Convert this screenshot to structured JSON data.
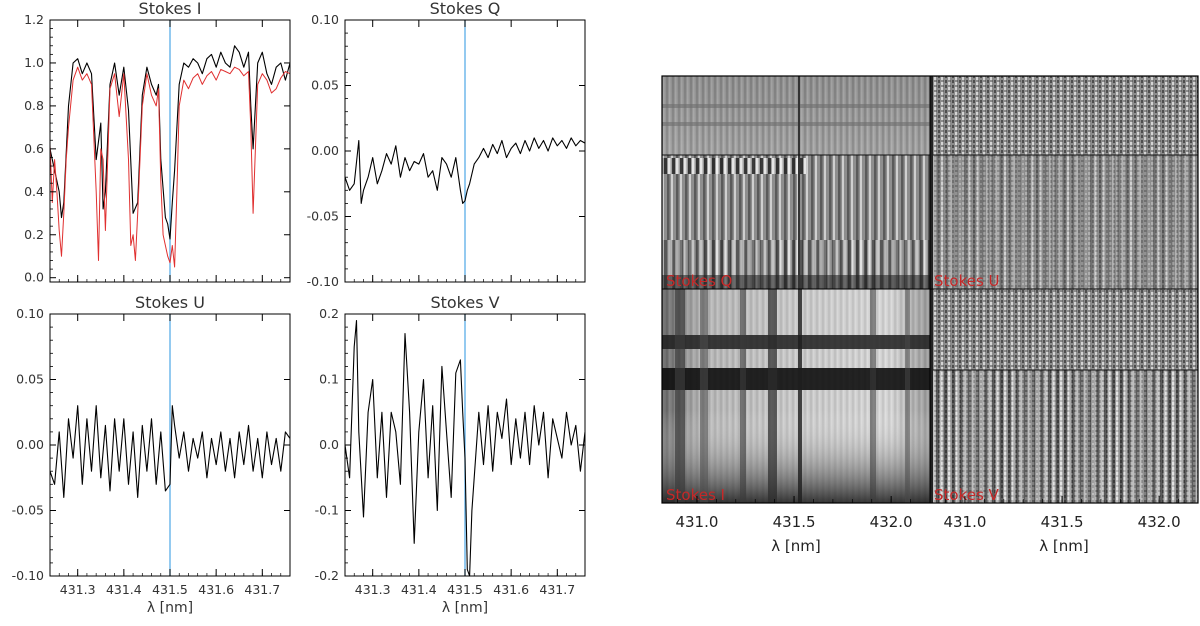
{
  "colors": {
    "observed": "#000000",
    "synthetic": "#e03030",
    "marker": "#5aaee8",
    "panel_label": "#c62828"
  },
  "chart_data": [
    {
      "type": "line",
      "title": "Stokes I",
      "xlim": [
        431.24,
        431.76
      ],
      "ylim": [
        -0.02,
        1.2
      ],
      "xticks": [
        431.3,
        431.4,
        431.5,
        431.6,
        431.7
      ],
      "xtick_labels": [],
      "yticks": [
        0.0,
        0.2,
        0.4,
        0.6,
        0.8,
        1.0,
        1.2
      ],
      "ytick_labels": [
        "0.0",
        "0.2",
        "0.4",
        "0.6",
        "0.8",
        "1.0",
        "1.2"
      ],
      "xlabel": "",
      "marker_x": 431.5,
      "series": [
        {
          "role": "observed",
          "x": [
            431.24,
            431.25,
            431.26,
            431.265,
            431.27,
            431.28,
            431.29,
            431.3,
            431.31,
            431.32,
            431.33,
            431.34,
            431.35,
            431.355,
            431.36,
            431.37,
            431.38,
            431.39,
            431.4,
            431.41,
            431.42,
            431.43,
            431.44,
            431.45,
            431.46,
            431.47,
            431.475,
            431.48,
            431.49,
            431.495,
            431.5,
            431.505,
            431.51,
            431.52,
            431.53,
            431.54,
            431.55,
            431.56,
            431.57,
            431.58,
            431.59,
            431.6,
            431.61,
            431.62,
            431.63,
            431.64,
            431.65,
            431.66,
            431.67,
            431.675,
            431.68,
            431.69,
            431.7,
            431.71,
            431.72,
            431.73,
            431.74,
            431.75,
            431.76
          ],
          "y": [
            0.6,
            0.5,
            0.4,
            0.28,
            0.35,
            0.8,
            1.0,
            1.02,
            0.95,
            1.0,
            0.95,
            0.55,
            0.72,
            0.32,
            0.4,
            0.9,
            1.0,
            0.85,
            0.98,
            0.78,
            0.3,
            0.35,
            0.85,
            0.98,
            0.9,
            0.85,
            0.9,
            0.55,
            0.28,
            0.25,
            0.18,
            0.35,
            0.5,
            0.9,
            1.0,
            0.98,
            1.02,
            1.0,
            0.95,
            1.02,
            1.04,
            0.98,
            1.05,
            1.0,
            0.98,
            1.08,
            1.05,
            0.98,
            1.05,
            0.8,
            0.6,
            1.0,
            1.05,
            0.95,
            0.9,
            0.98,
            1.0,
            0.92,
            1.0
          ]
        },
        {
          "role": "synthetic",
          "x": [
            431.24,
            431.245,
            431.25,
            431.255,
            431.26,
            431.265,
            431.27,
            431.275,
            431.28,
            431.29,
            431.3,
            431.31,
            431.32,
            431.33,
            431.34,
            431.345,
            431.35,
            431.355,
            431.36,
            431.37,
            431.38,
            431.39,
            431.4,
            431.41,
            431.415,
            431.42,
            431.425,
            431.43,
            431.44,
            431.45,
            431.46,
            431.47,
            431.475,
            431.48,
            431.485,
            431.49,
            431.495,
            431.5,
            431.505,
            431.51,
            431.515,
            431.52,
            431.53,
            431.54,
            431.55,
            431.56,
            431.57,
            431.58,
            431.59,
            431.6,
            431.61,
            431.62,
            431.63,
            431.64,
            431.65,
            431.66,
            431.67,
            431.675,
            431.68,
            431.685,
            431.69,
            431.7,
            431.71,
            431.72,
            431.73,
            431.74,
            431.75,
            431.76
          ],
          "y": [
            0.62,
            0.35,
            0.55,
            0.4,
            0.22,
            0.1,
            0.3,
            0.55,
            0.7,
            0.92,
            0.98,
            0.92,
            0.95,
            0.9,
            0.4,
            0.08,
            0.6,
            0.55,
            0.22,
            0.88,
            0.95,
            0.75,
            0.95,
            0.55,
            0.15,
            0.2,
            0.08,
            0.3,
            0.8,
            0.95,
            0.85,
            0.8,
            0.88,
            0.45,
            0.2,
            0.15,
            0.1,
            0.07,
            0.15,
            0.05,
            0.4,
            0.8,
            0.92,
            0.88,
            0.93,
            0.95,
            0.9,
            0.94,
            0.96,
            0.92,
            0.97,
            0.96,
            0.95,
            0.98,
            0.97,
            0.94,
            0.96,
            0.7,
            0.3,
            0.6,
            0.9,
            0.95,
            0.92,
            0.86,
            0.88,
            0.93,
            0.96,
            0.95
          ]
        }
      ]
    },
    {
      "type": "line",
      "title": "Stokes Q",
      "xlim": [
        431.24,
        431.76
      ],
      "ylim": [
        -0.1,
        0.1
      ],
      "xticks": [
        431.3,
        431.4,
        431.5,
        431.6,
        431.7
      ],
      "xtick_labels": [],
      "yticks": [
        -0.1,
        -0.05,
        0.0,
        0.05,
        0.1
      ],
      "ytick_labels": [
        "-0.10",
        "-0.05",
        "0.00",
        "0.05",
        "0.10"
      ],
      "xlabel": "",
      "marker_x": 431.5,
      "series": [
        {
          "role": "observed",
          "x": [
            431.24,
            431.25,
            431.26,
            431.27,
            431.275,
            431.28,
            431.29,
            431.3,
            431.31,
            431.32,
            431.33,
            431.34,
            431.35,
            431.36,
            431.37,
            431.38,
            431.39,
            431.4,
            431.41,
            431.42,
            431.43,
            431.44,
            431.45,
            431.46,
            431.47,
            431.48,
            431.49,
            431.495,
            431.5,
            431.505,
            431.51,
            431.52,
            431.53,
            431.54,
            431.55,
            431.56,
            431.57,
            431.58,
            431.59,
            431.6,
            431.61,
            431.62,
            431.63,
            431.64,
            431.65,
            431.66,
            431.67,
            431.68,
            431.69,
            431.7,
            431.71,
            431.72,
            431.73,
            431.74,
            431.75,
            431.76
          ],
          "y": [
            -0.02,
            -0.03,
            -0.025,
            0.008,
            -0.04,
            -0.03,
            -0.02,
            -0.005,
            -0.025,
            -0.015,
            -0.002,
            -0.01,
            0.004,
            -0.02,
            -0.005,
            -0.015,
            -0.008,
            -0.01,
            -0.002,
            -0.02,
            -0.015,
            -0.03,
            -0.005,
            -0.01,
            -0.02,
            -0.005,
            -0.03,
            -0.04,
            -0.038,
            -0.03,
            -0.025,
            -0.01,
            -0.005,
            0.002,
            -0.005,
            0.005,
            -0.002,
            0.008,
            -0.005,
            0.002,
            0.006,
            -0.002,
            0.008,
            0.0,
            0.01,
            0.002,
            0.008,
            0.0,
            0.01,
            0.004,
            0.008,
            0.002,
            0.01,
            0.004,
            0.008,
            0.006
          ]
        }
      ]
    },
    {
      "type": "line",
      "title": "Stokes U",
      "xlim": [
        431.24,
        431.76
      ],
      "ylim": [
        -0.1,
        0.1
      ],
      "xticks": [
        431.3,
        431.4,
        431.5,
        431.6,
        431.7
      ],
      "xtick_labels": [
        "431.3",
        "431.4",
        "431.5",
        "431.6",
        "431.7"
      ],
      "yticks": [
        -0.1,
        -0.05,
        0.0,
        0.05,
        0.1
      ],
      "ytick_labels": [
        "-0.10",
        "-0.05",
        "0.00",
        "0.05",
        "0.10"
      ],
      "xlabel": "λ [nm]",
      "marker_x": 431.5,
      "series": [
        {
          "role": "observed",
          "x": [
            431.24,
            431.25,
            431.26,
            431.27,
            431.28,
            431.29,
            431.3,
            431.31,
            431.32,
            431.33,
            431.34,
            431.35,
            431.36,
            431.37,
            431.38,
            431.39,
            431.4,
            431.41,
            431.42,
            431.43,
            431.44,
            431.45,
            431.46,
            431.47,
            431.48,
            431.49,
            431.5,
            431.505,
            431.51,
            431.52,
            431.53,
            431.54,
            431.55,
            431.56,
            431.57,
            431.58,
            431.59,
            431.6,
            431.61,
            431.62,
            431.63,
            431.64,
            431.65,
            431.66,
            431.67,
            431.68,
            431.69,
            431.7,
            431.71,
            431.72,
            431.73,
            431.74,
            431.75,
            431.76
          ],
          "y": [
            -0.02,
            -0.03,
            0.01,
            -0.04,
            0.02,
            -0.01,
            0.03,
            -0.03,
            0.02,
            -0.02,
            0.03,
            -0.025,
            0.015,
            -0.035,
            0.02,
            -0.02,
            0.02,
            -0.03,
            0.01,
            -0.04,
            0.015,
            -0.02,
            0.02,
            -0.03,
            0.01,
            -0.035,
            -0.03,
            0.03,
            0.015,
            -0.01,
            0.01,
            -0.02,
            0.005,
            -0.01,
            0.01,
            -0.025,
            0.005,
            -0.015,
            0.01,
            -0.02,
            0.005,
            -0.025,
            0.01,
            -0.015,
            0.015,
            -0.02,
            0.005,
            -0.025,
            0.01,
            -0.015,
            0.005,
            -0.02,
            0.01,
            0.005
          ]
        }
      ]
    },
    {
      "type": "line",
      "title": "Stokes V",
      "xlim": [
        431.24,
        431.76
      ],
      "ylim": [
        -0.2,
        0.2
      ],
      "xticks": [
        431.3,
        431.4,
        431.5,
        431.6,
        431.7
      ],
      "xtick_labels": [
        "431.3",
        "431.4",
        "431.5",
        "431.6",
        "431.7"
      ],
      "yticks": [
        -0.2,
        -0.1,
        0.0,
        0.1,
        0.2
      ],
      "ytick_labels": [
        "-0.2",
        "-0.1",
        "0.0",
        "0.1",
        "0.2"
      ],
      "xlabel": "λ [nm]",
      "marker_x": 431.5,
      "series": [
        {
          "role": "observed",
          "x": [
            431.24,
            431.25,
            431.26,
            431.265,
            431.27,
            431.28,
            431.29,
            431.3,
            431.31,
            431.32,
            431.33,
            431.34,
            431.35,
            431.36,
            431.37,
            431.38,
            431.39,
            431.4,
            431.41,
            431.42,
            431.43,
            431.44,
            431.45,
            431.46,
            431.47,
            431.48,
            431.49,
            431.495,
            431.5,
            431.505,
            431.51,
            431.515,
            431.52,
            431.53,
            431.54,
            431.55,
            431.56,
            431.57,
            431.58,
            431.59,
            431.6,
            431.61,
            431.62,
            431.63,
            431.64,
            431.65,
            431.66,
            431.67,
            431.68,
            431.69,
            431.7,
            431.71,
            431.72,
            431.73,
            431.74,
            431.75,
            431.76
          ],
          "y": [
            0.0,
            -0.05,
            0.15,
            0.19,
            0.02,
            -0.11,
            0.05,
            0.1,
            -0.05,
            0.05,
            -0.08,
            0.05,
            0.02,
            -0.06,
            0.17,
            0.05,
            -0.15,
            0.02,
            0.1,
            -0.05,
            0.06,
            -0.1,
            0.12,
            0.02,
            -0.08,
            0.11,
            0.13,
            0.05,
            -0.02,
            -0.19,
            -0.2,
            -0.1,
            -0.05,
            0.05,
            -0.03,
            0.06,
            -0.04,
            0.05,
            0.01,
            0.07,
            -0.03,
            0.04,
            -0.02,
            0.05,
            -0.03,
            0.06,
            0.0,
            0.05,
            -0.05,
            0.04,
            0.01,
            -0.02,
            0.05,
            0.0,
            0.03,
            -0.04,
            0.02
          ]
        }
      ]
    }
  ],
  "spectral_images": {
    "panel_labels": [
      "Stokes Q",
      "Stokes U",
      "Stokes I",
      "Stokes V"
    ],
    "xticks": [
      431.0,
      431.5,
      432.0
    ],
    "xtick_labels": [
      "431.0",
      "431.5",
      "432.0"
    ],
    "xlim": [
      430.82,
      432.2
    ],
    "xlabel": "λ [nm]"
  }
}
